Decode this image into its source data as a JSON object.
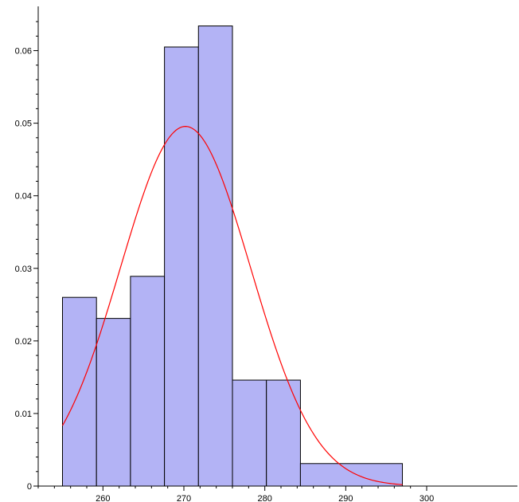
{
  "chart_data": {
    "type": "bar",
    "title": "",
    "xlabel": "",
    "ylabel": "",
    "xlim": [
      251.5,
      300
    ],
    "ylim": [
      0,
      0.065
    ],
    "grid": false,
    "legend": "none",
    "bins": [
      {
        "x0": 255.0,
        "x1": 259.2,
        "value": 0.026
      },
      {
        "x0": 259.2,
        "x1": 263.4,
        "value": 0.0231
      },
      {
        "x0": 263.4,
        "x1": 267.6,
        "value": 0.0289
      },
      {
        "x0": 267.6,
        "x1": 271.8,
        "value": 0.0605
      },
      {
        "x0": 271.8,
        "x1": 276.0,
        "value": 0.0634
      },
      {
        "x0": 276.0,
        "x1": 280.2,
        "value": 0.0146
      },
      {
        "x0": 280.2,
        "x1": 284.4,
        "value": 0.0146
      },
      {
        "x0": 284.4,
        "x1": 297.0,
        "value": 0.0031
      }
    ],
    "curve": {
      "name": "",
      "kind": "normal-density",
      "mean": 270.2,
      "sd": 8.05,
      "x_range": [
        255,
        297
      ]
    },
    "x_ticks": [
      {
        "value": 260,
        "label": "260"
      },
      {
        "value": 270,
        "label": "270"
      },
      {
        "value": 280,
        "label": "280"
      },
      {
        "value": 290,
        "label": "290"
      },
      {
        "value": 300,
        "label": "300"
      }
    ],
    "y_ticks": [
      {
        "value": 0,
        "label": "0"
      },
      {
        "value": 0.01,
        "label": "0.01"
      },
      {
        "value": 0.02,
        "label": "0.02"
      },
      {
        "value": 0.03,
        "label": "0.03"
      },
      {
        "value": 0.04,
        "label": "0.04"
      },
      {
        "value": 0.05,
        "label": "0.05"
      },
      {
        "value": 0.06,
        "label": "0.06"
      }
    ],
    "colors": {
      "bar_fill": "#b3b3f5",
      "bar_stroke": "#000000",
      "curve": "#ff0000",
      "axis": "#000000"
    }
  }
}
